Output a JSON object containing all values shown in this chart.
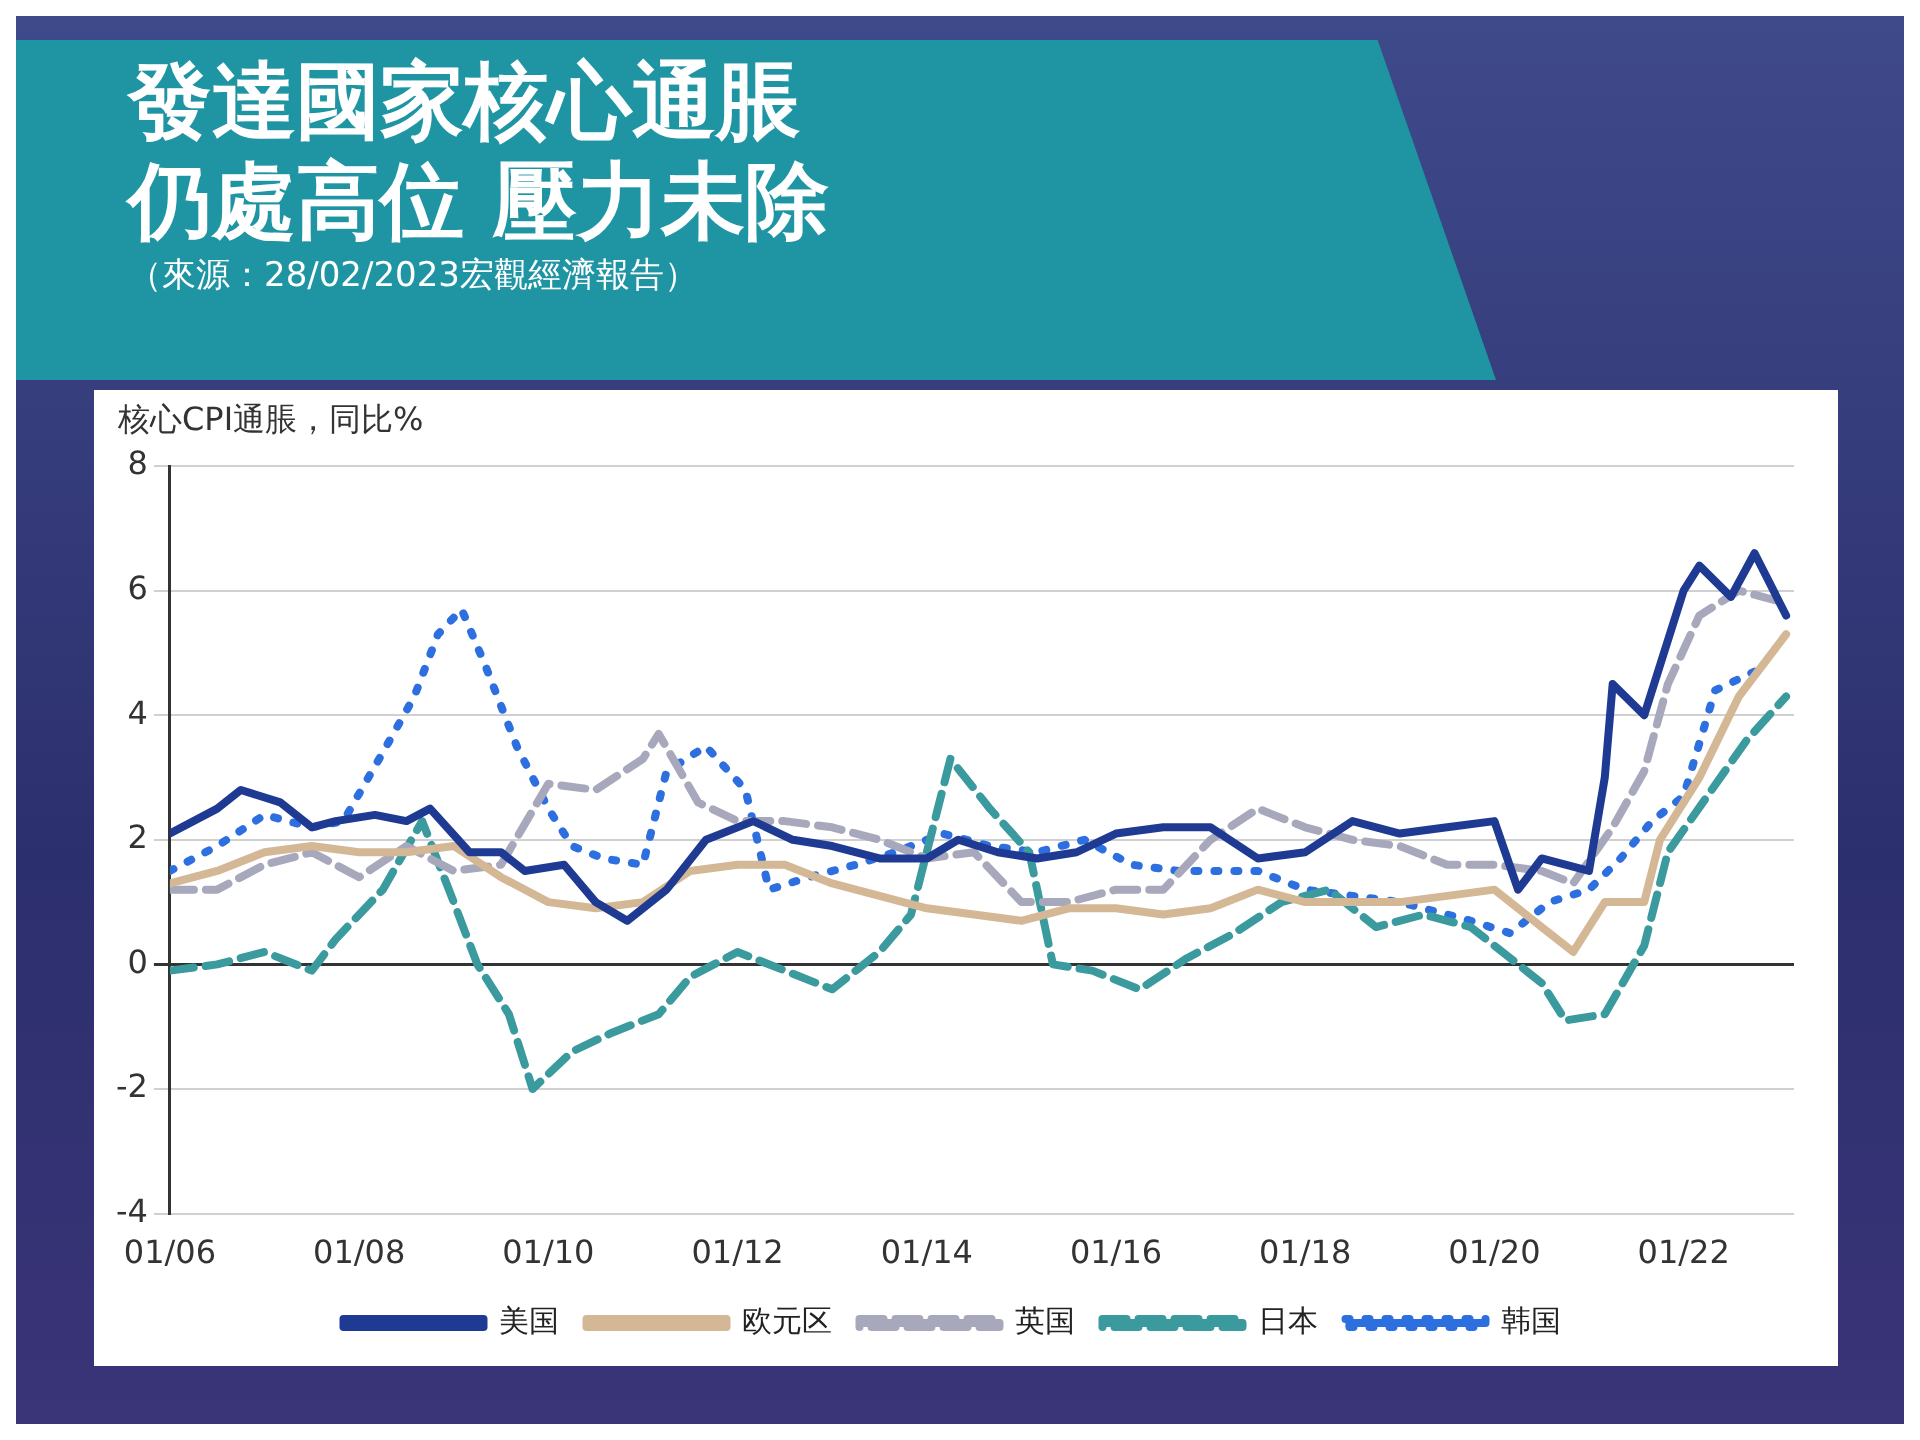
{
  "chart_data": {
    "type": "line",
    "title": "發達國家核心通脹仍處高位 壓力未除",
    "subtitle": "（來源：28/02/2023宏觀經濟報告）",
    "ylabel": "核心CPI通脹，同比%",
    "xlim": [
      "2006-01",
      "2023-03"
    ],
    "xticks": [
      {
        "value": "2006-01",
        "label": "01/06"
      },
      {
        "value": "2008-01",
        "label": "01/08"
      },
      {
        "value": "2010-01",
        "label": "01/10"
      },
      {
        "value": "2012-01",
        "label": "01/12"
      },
      {
        "value": "2014-01",
        "label": "01/14"
      },
      {
        "value": "2016-01",
        "label": "01/16"
      },
      {
        "value": "2018-01",
        "label": "01/18"
      },
      {
        "value": "2020-01",
        "label": "01/20"
      },
      {
        "value": "2022-01",
        "label": "01/22"
      }
    ],
    "ylim": [
      -4,
      8
    ],
    "yticks": [
      -4,
      -2,
      0,
      2,
      4,
      6,
      8
    ],
    "grid": "y",
    "legend": "bottom",
    "marker": "none",
    "series": [
      {
        "name": "美国",
        "color": "#1f3a93",
        "line_style": "solid",
        "x": [
          "2006-01",
          "2006-07",
          "2006-10",
          "2007-03",
          "2007-07",
          "2007-10",
          "2008-03",
          "2008-07",
          "2008-10",
          "2009-03",
          "2009-07",
          "2009-10",
          "2010-03",
          "2010-07",
          "2010-11",
          "2011-04",
          "2011-09",
          "2012-03",
          "2012-08",
          "2013-01",
          "2013-07",
          "2014-01",
          "2014-05",
          "2014-10",
          "2015-03",
          "2015-08",
          "2016-01",
          "2016-07",
          "2017-01",
          "2017-07",
          "2018-01",
          "2018-07",
          "2019-01",
          "2019-07",
          "2020-01",
          "2020-04",
          "2020-07",
          "2021-01",
          "2021-03",
          "2021-04",
          "2021-08",
          "2022-01",
          "2022-03",
          "2022-07",
          "2022-10",
          "2023-02"
        ],
        "values": [
          2.1,
          2.5,
          2.8,
          2.6,
          2.2,
          2.3,
          2.4,
          2.3,
          2.5,
          1.8,
          1.8,
          1.5,
          1.6,
          1,
          0.7,
          1.2,
          2,
          2.3,
          2,
          1.9,
          1.7,
          1.7,
          2,
          1.8,
          1.7,
          1.8,
          2.1,
          2.2,
          2.2,
          1.7,
          1.8,
          2.3,
          2.1,
          2.2,
          2.3,
          1.2,
          1.7,
          1.5,
          3,
          4.5,
          4,
          6,
          6.4,
          5.9,
          6.6,
          5.6
        ]
      },
      {
        "name": "欧元区",
        "color": "#d4b896",
        "line_style": "solid",
        "x": [
          "2006-01",
          "2006-07",
          "2007-01",
          "2007-07",
          "2008-01",
          "2008-07",
          "2009-01",
          "2009-07",
          "2010-01",
          "2010-07",
          "2011-01",
          "2011-07",
          "2012-01",
          "2012-07",
          "2013-01",
          "2013-07",
          "2014-01",
          "2014-07",
          "2015-01",
          "2015-07",
          "2016-01",
          "2016-07",
          "2017-01",
          "2017-07",
          "2018-01",
          "2018-07",
          "2019-01",
          "2019-07",
          "2020-01",
          "2020-07",
          "2020-11",
          "2021-03",
          "2021-08",
          "2021-10",
          "2022-03",
          "2022-08",
          "2023-02"
        ],
        "values": [
          1.3,
          1.5,
          1.8,
          1.9,
          1.8,
          1.8,
          1.9,
          1.4,
          1,
          0.9,
          1,
          1.5,
          1.6,
          1.6,
          1.3,
          1.1,
          0.9,
          0.8,
          0.7,
          0.9,
          0.9,
          0.8,
          0.9,
          1.2,
          1,
          1,
          1,
          1.1,
          1.2,
          0.6,
          0.2,
          1,
          1,
          2,
          3,
          4.3,
          5.3
        ]
      },
      {
        "name": "英国",
        "color": "#a8a8bc",
        "line_style": "dashed",
        "x": [
          "2006-01",
          "2006-07",
          "2007-01",
          "2007-07",
          "2008-01",
          "2008-07",
          "2009-01",
          "2009-07",
          "2010-01",
          "2010-07",
          "2011-01",
          "2011-03",
          "2011-08",
          "2012-01",
          "2012-07",
          "2013-01",
          "2013-07",
          "2014-01",
          "2014-07",
          "2015-01",
          "2015-07",
          "2016-01",
          "2016-07",
          "2017-01",
          "2017-07",
          "2018-01",
          "2018-07",
          "2019-01",
          "2019-07",
          "2020-01",
          "2020-07",
          "2020-11",
          "2021-04",
          "2021-08",
          "2021-11",
          "2022-03",
          "2022-08",
          "2023-02"
        ],
        "values": [
          1.2,
          1.2,
          1.6,
          1.8,
          1.4,
          1.9,
          1.5,
          1.6,
          2.9,
          2.8,
          3.3,
          3.7,
          2.6,
          2.3,
          2.3,
          2.2,
          2,
          1.7,
          1.8,
          1,
          1,
          1.2,
          1.2,
          2,
          2.5,
          2.2,
          2,
          1.9,
          1.6,
          1.6,
          1.5,
          1.3,
          2.2,
          3.1,
          4.5,
          5.6,
          6,
          5.8
        ]
      },
      {
        "name": "日本",
        "color": "#3a9a9e",
        "line_style": "dashed",
        "x": [
          "2006-01",
          "2006-07",
          "2007-01",
          "2007-07",
          "2007-10",
          "2008-04",
          "2008-09",
          "2009-01",
          "2009-04",
          "2009-08",
          "2009-11",
          "2010-04",
          "2010-09",
          "2011-03",
          "2011-07",
          "2012-01",
          "2012-07",
          "2013-01",
          "2013-07",
          "2013-11",
          "2014-04",
          "2014-09",
          "2015-02",
          "2015-05",
          "2015-10",
          "2016-04",
          "2016-10",
          "2017-04",
          "2017-10",
          "2018-04",
          "2018-10",
          "2019-04",
          "2019-10",
          "2020-03",
          "2020-07",
          "2020-10",
          "2021-03",
          "2021-08",
          "2021-11",
          "2022-04",
          "2022-09",
          "2023-02"
        ],
        "values": [
          -0.1,
          0,
          0.2,
          -0.1,
          0.4,
          1.2,
          2.3,
          1,
          0,
          -0.8,
          -2,
          -1.4,
          -1.1,
          -0.8,
          -0.2,
          0.2,
          -0.1,
          -0.4,
          0.2,
          0.8,
          3.3,
          2.5,
          1.8,
          0,
          -0.1,
          -0.4,
          0.1,
          0.5,
          1,
          1.2,
          0.6,
          0.8,
          0.6,
          0.1,
          -0.3,
          -0.9,
          -0.8,
          0.3,
          1.8,
          2.7,
          3.6,
          4.3
        ]
      },
      {
        "name": "韩国",
        "color": "#2e6fe0",
        "line_style": "dotted",
        "x": [
          "2006-01",
          "2006-07",
          "2007-01",
          "2007-07",
          "2007-11",
          "2008-04",
          "2008-08",
          "2008-11",
          "2009-02",
          "2009-05",
          "2009-09",
          "2010-01",
          "2010-04",
          "2010-08",
          "2011-01",
          "2011-04",
          "2011-09",
          "2012-02",
          "2012-05",
          "2012-10",
          "2013-04",
          "2013-09",
          "2014-03",
          "2014-09",
          "2015-03",
          "2015-09",
          "2016-03",
          "2016-09",
          "2017-03",
          "2017-07",
          "2018-01",
          "2018-07",
          "2019-01",
          "2019-07",
          "2019-10",
          "2020-03",
          "2020-08",
          "2021-01",
          "2021-05",
          "2021-09",
          "2022-01",
          "2022-05",
          "2022-10"
        ],
        "values": [
          1.5,
          1.9,
          2.4,
          2.2,
          2.3,
          3.4,
          4.3,
          5.3,
          5.7,
          4.8,
          3.5,
          2.5,
          1.9,
          1.7,
          1.6,
          3.1,
          3.5,
          2.8,
          1.2,
          1.4,
          1.6,
          1.8,
          2.1,
          1.9,
          1.8,
          2,
          1.6,
          1.5,
          1.5,
          1.5,
          1.2,
          1.1,
          1,
          0.8,
          0.7,
          0.5,
          1,
          1.2,
          1.7,
          2.3,
          2.7,
          4.4,
          4.7
        ]
      }
    ]
  }
}
